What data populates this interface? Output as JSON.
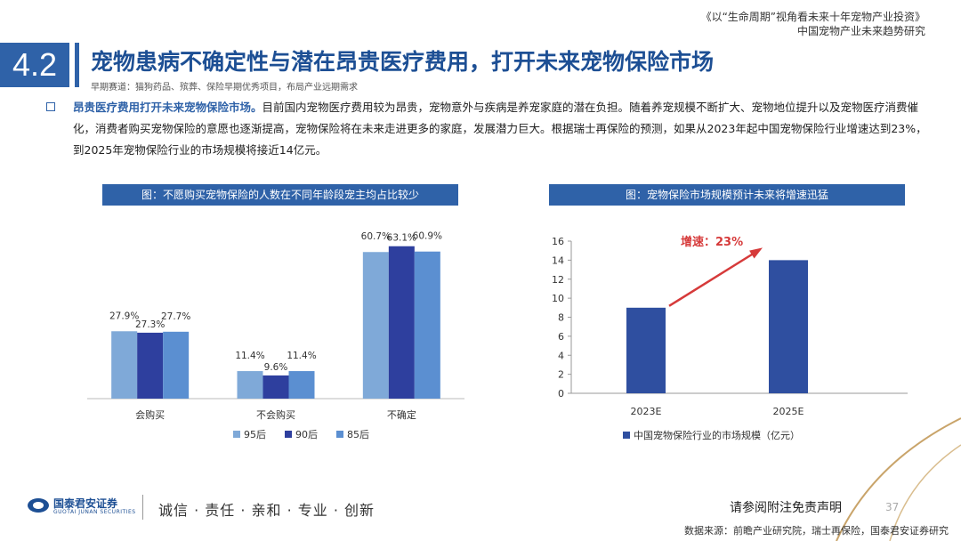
{
  "header": {
    "report_title": "《以“生命周期”视角看未来十年宠物产业投资》",
    "report_subtitle": "中国宠物产业未来趋势研究"
  },
  "section": {
    "number": "4.2",
    "title": "宠物患病不确定性与潜在昂贵医疗费用，打开未来宠物保险市场",
    "subtitle": "早期赛道：猫狗药品、殡葬、保险早期优秀项目，布局产业远期需求"
  },
  "body": {
    "highlight": "昂贵医疗费用打开未来宠物保险市场。",
    "text": "目前国内宠物医疗费用较为昂贵，宠物意外与疾病是养宠家庭的潜在负担。随着养宠规模不断扩大、宠物地位提升以及宠物医疗消费催化，消费者购买宠物保险的意愿也逐渐提高，宠物保险将在未来走进更多的家庭，发展潜力巨大。根据瑞士再保险的预测，如果从2023年起中国宠物保险行业增速达到23%，到2025年宠物保险行业的市场规模将接近14亿元。"
  },
  "chart_data": [
    {
      "type": "bar",
      "title": "图：不愿购买宠物保险的人数在不同年龄段宠主均占比较少",
      "categories": [
        "会购买",
        "不会购买",
        "不确定"
      ],
      "series": [
        {
          "name": "95后",
          "values": [
            27.9,
            11.4,
            60.7
          ],
          "labels": [
            "27.9%",
            "11.4%",
            "60.7%"
          ],
          "color": "#7fa9d8"
        },
        {
          "name": "90后",
          "values": [
            27.3,
            9.6,
            63.1
          ],
          "labels": [
            "27.3%",
            "9.6%",
            "63.1%"
          ],
          "color": "#2e3f9e"
        },
        {
          "name": "85后",
          "values": [
            27.7,
            11.4,
            60.9
          ],
          "labels": [
            "27.7%",
            "11.4%",
            "60.9%"
          ],
          "color": "#5b8fd1"
        }
      ],
      "ylim": [
        0,
        70
      ],
      "grid": false,
      "legend": "bottom"
    },
    {
      "type": "bar",
      "title": "图：宠物保险市场规模预计未来将增速迅猛",
      "categories": [
        "2023E",
        "2025E"
      ],
      "series": [
        {
          "name": "中国宠物保险行业的市场规模（亿元）",
          "values": [
            9,
            14
          ],
          "color": "#2f4fa0"
        }
      ],
      "ylim": [
        0,
        16
      ],
      "yticks": [
        "0",
        "2",
        "4",
        "6",
        "8",
        "10",
        "12",
        "14",
        "16"
      ],
      "annotation": "增速：23%",
      "annotation_color": "#d63a3a",
      "grid": false,
      "legend": "bottom"
    }
  ],
  "footer": {
    "logo_name": "国泰君安证券",
    "logo_english": "GUOTAI JUNAN SECURITIES",
    "slogan": "诚信 · 责任 · 亲和 · 专业 · 创新",
    "disclaimer": "请参阅附注免责声明",
    "page_number": "37",
    "source": "数据来源：前瞻产业研究院，瑞士再保险，国泰君安证券研究"
  },
  "colors": {
    "brand": "#2f62a8",
    "title": "#1d4f94",
    "accent_red": "#d63a3a",
    "gold_line": "#c9a46a"
  }
}
